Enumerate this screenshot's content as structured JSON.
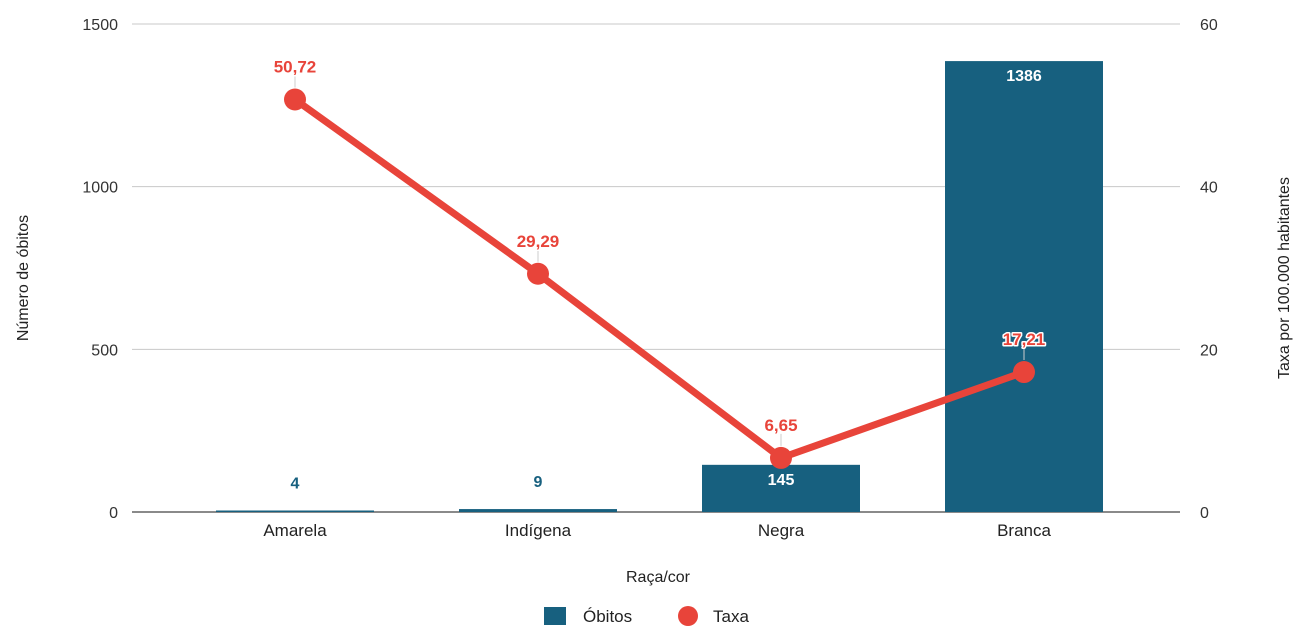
{
  "chart_data": {
    "type": "bar",
    "categories": [
      "Amarela",
      "Indígena",
      "Negra",
      "Branca"
    ],
    "series": [
      {
        "name": "Óbitos",
        "type": "bar",
        "axis": "left",
        "values": [
          4,
          9,
          145,
          1386
        ],
        "labels": [
          "4",
          "9",
          "145",
          "1386"
        ],
        "color": "#17607f"
      },
      {
        "name": "Taxa",
        "type": "line",
        "axis": "right",
        "values": [
          50.72,
          29.29,
          6.65,
          17.21
        ],
        "labels": [
          "50,72",
          "29,29",
          "6,65",
          "17,21"
        ],
        "color": "#e8443a"
      }
    ],
    "xlabel": "Raça/cor",
    "ylabel": "Número de óbitos",
    "y2label": "Taxa por 100.000 habitantes",
    "ylim": [
      0,
      1500
    ],
    "y2lim": [
      0,
      60
    ],
    "yticks": [
      "0",
      "500",
      "1000",
      "1500"
    ],
    "y2ticks": [
      "0",
      "20",
      "40",
      "60"
    ],
    "grid": true,
    "legend": "bottom-center"
  }
}
